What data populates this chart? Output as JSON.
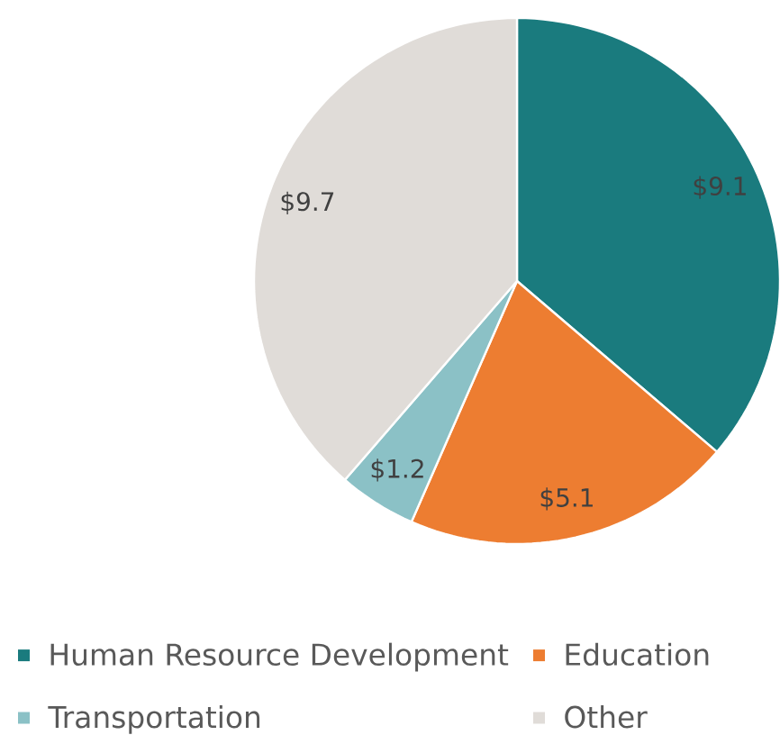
{
  "chart_data": {
    "type": "pie",
    "categories": [
      "Human Resource Development",
      "Education",
      "Transportation",
      "Other"
    ],
    "values": [
      9.1,
      5.1,
      1.2,
      9.7
    ],
    "colors": [
      "#1a7b7e",
      "#ed7d31",
      "#8bc1c6",
      "#e0dcd8"
    ],
    "value_labels": [
      "$9.1",
      "$5.1",
      "$1.2",
      "$9.7"
    ],
    "legend": "bottom"
  }
}
